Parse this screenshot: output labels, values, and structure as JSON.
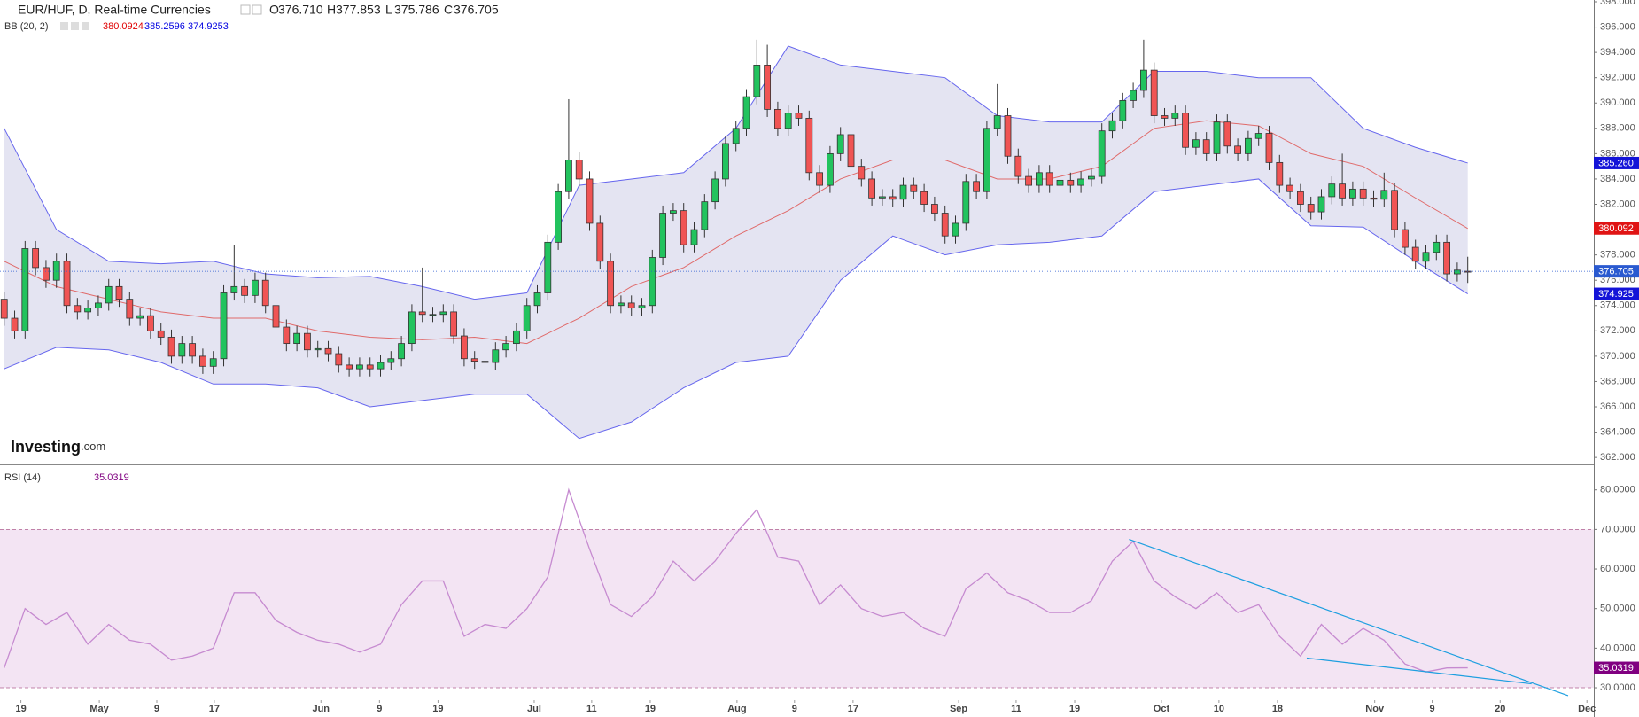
{
  "chart_data": [
    {
      "type": "candlestick",
      "title": "EUR/HUF, D, Real-time Currencies",
      "ohlc_legend": [
        {
          "key": "O",
          "label": "376.710"
        },
        {
          "key": "H",
          "label": "377.853"
        },
        {
          "key": "L",
          "label": "375.786"
        },
        {
          "key": "C",
          "label": "376.705"
        }
      ],
      "indicator": "BB (20, 2)",
      "indicator_values": [
        {
          "label": "380.0924",
          "color": "#e00000"
        },
        {
          "label": "385.2596",
          "color": "#0000e0"
        },
        {
          "label": "374.9253",
          "color": "#0000e0"
        }
      ],
      "logo": [
        "Investing",
        ".com"
      ],
      "up_color": "#22c35e",
      "down_color": "#f05454",
      "xlim": [
        -0.4,
        152.06
      ],
      "ylim": [
        361.52,
        398.14
      ],
      "yticks": [
        {
          "value": 362,
          "label": "362.000"
        },
        {
          "value": 364,
          "label": "364.000"
        },
        {
          "value": 366,
          "label": "366.000"
        },
        {
          "value": 368,
          "label": "368.000"
        },
        {
          "value": 370,
          "label": "370.000"
        },
        {
          "value": 372,
          "label": "372.000"
        },
        {
          "value": 374,
          "label": "374.000"
        },
        {
          "value": 376,
          "label": "376.000"
        },
        {
          "value": 378,
          "label": "378.000"
        },
        {
          "value": 380,
          "label": "380.000"
        },
        {
          "value": 382,
          "label": "382.000"
        },
        {
          "value": 384,
          "label": "384.000"
        },
        {
          "value": 386,
          "label": "386.000"
        },
        {
          "value": 388,
          "label": "388.000"
        },
        {
          "value": 390,
          "label": "390.000"
        },
        {
          "value": 392,
          "label": "392.000"
        },
        {
          "value": 394,
          "label": "394.000"
        },
        {
          "value": 396,
          "label": "396.000"
        },
        {
          "value": 398,
          "label": "398.000"
        }
      ],
      "open": [
        374.5,
        373,
        372,
        378.5,
        377,
        376,
        377.5,
        374,
        373.5,
        373.8,
        374.2,
        375.5,
        374.5,
        373,
        373.2,
        372,
        371.5,
        370,
        371,
        370,
        369.2,
        369.8,
        375,
        375.5,
        374.8,
        376,
        374,
        372.3,
        371,
        371.8,
        370.5,
        370.6,
        370.2,
        369.3,
        369,
        369.3,
        369,
        369.5,
        369.8,
        371,
        373.5,
        373.3,
        373.3,
        373.5,
        371.6,
        369.8,
        369.6,
        369.5,
        370.5,
        371,
        372,
        374,
        375,
        379,
        383,
        385.5,
        384,
        380.5,
        377.5,
        374,
        374.2,
        373.8,
        374,
        377.8,
        381.3,
        381.5,
        378.8,
        380,
        382.2,
        384,
        386.8,
        388,
        390.5,
        393,
        389.5,
        388,
        389.2,
        388.8,
        384.5,
        383.5,
        386,
        387.5,
        385,
        384,
        382.5,
        382.6,
        382.4,
        383.5,
        383,
        382,
        381.3,
        379.5,
        380.5,
        383.8,
        383,
        388,
        389,
        385.8,
        384.2,
        383.5,
        384.5,
        383.5,
        383.9,
        383.5,
        384,
        384.2,
        387.8,
        388.6,
        390.2,
        391,
        392.6,
        389,
        388.8,
        389.2,
        386.5,
        387.1,
        386,
        388.5,
        386.6,
        386,
        387.2,
        387.6,
        385.3,
        383.5,
        383,
        382,
        381.4,
        382.6,
        383.6,
        382.5,
        383.2,
        382.5,
        382.4,
        383.1,
        380,
        378.6,
        377.5,
        378.2,
        379,
        376.5,
        376.71
      ],
      "high": [
        375.1,
        373.6,
        379.1,
        379.1,
        377.6,
        378.1,
        378.1,
        374.6,
        374.4,
        374.8,
        376.1,
        376.1,
        375.1,
        373.8,
        373.8,
        372.6,
        372.1,
        371.6,
        371.6,
        370.6,
        370.4,
        375.6,
        378.8,
        376.1,
        376.6,
        376.6,
        374.6,
        372.9,
        372.4,
        372.4,
        371.2,
        371.2,
        370.8,
        369.9,
        369.9,
        369.9,
        370.1,
        370.4,
        371.6,
        374.1,
        377,
        373.9,
        374.1,
        374.1,
        372.2,
        370.4,
        370.2,
        371.1,
        371.6,
        372.6,
        374.6,
        375.6,
        379.6,
        383.6,
        390.3,
        386.1,
        384.6,
        381.1,
        378.1,
        374.8,
        374.8,
        374.6,
        378.4,
        381.9,
        382.1,
        382.1,
        380.6,
        382.8,
        384.6,
        387.4,
        388.6,
        391.1,
        395,
        394.6,
        390.1,
        389.8,
        389.8,
        389.4,
        385.1,
        386.6,
        388.1,
        388.1,
        385.6,
        384.6,
        383.2,
        383.2,
        384.1,
        384.1,
        383.6,
        382.6,
        381.9,
        381.1,
        384.4,
        384.4,
        388.6,
        391.5,
        389.6,
        386.4,
        384.8,
        385.1,
        385.1,
        384.5,
        384.5,
        384.6,
        384.8,
        388.4,
        389.2,
        390.8,
        391.6,
        395,
        393.2,
        389.6,
        389.8,
        389.8,
        387.7,
        387.7,
        389.1,
        389.1,
        387.2,
        387.8,
        388.2,
        388.2,
        385.9,
        384.1,
        383.6,
        382.6,
        383.2,
        384.2,
        386,
        383.8,
        383.8,
        383.1,
        384.5,
        383.7,
        380.6,
        379.2,
        378.8,
        379.6,
        379.6,
        377.4,
        377.853
      ],
      "low": [
        372.4,
        371.4,
        371.4,
        376.4,
        375.4,
        375.4,
        373.4,
        372.9,
        372.9,
        373.2,
        373.6,
        373.9,
        372.4,
        372.4,
        371.4,
        370.9,
        369.4,
        369.4,
        369.4,
        368.6,
        368.6,
        369.2,
        374.4,
        374.2,
        374.2,
        373.4,
        371.7,
        370.4,
        370.4,
        369.9,
        369.9,
        369.6,
        368.7,
        368.4,
        368.4,
        368.4,
        368.4,
        368.9,
        369.2,
        370.4,
        372.7,
        372.7,
        372.7,
        371,
        369.2,
        369,
        368.9,
        368.9,
        369.9,
        370.4,
        371.4,
        373.4,
        374.4,
        378.4,
        382.4,
        383.4,
        379.9,
        376.9,
        373.4,
        373.4,
        373.2,
        373.2,
        373.4,
        377.2,
        380.7,
        378.2,
        378.2,
        379.4,
        381.6,
        383.4,
        386.2,
        387.4,
        389.9,
        388.9,
        387.4,
        387.4,
        388.2,
        383.9,
        382.9,
        382.9,
        385.4,
        384.4,
        383.4,
        381.9,
        381.9,
        381.8,
        381.8,
        382.4,
        381.4,
        380.7,
        378.9,
        378.9,
        379.9,
        382.4,
        382.4,
        387.4,
        385.2,
        383.6,
        382.9,
        382.9,
        382.9,
        382.9,
        382.9,
        382.9,
        383.4,
        383.6,
        387.2,
        388,
        389.6,
        390.4,
        388.4,
        388.2,
        388.2,
        385.9,
        385.9,
        385.4,
        385.4,
        386,
        385.4,
        385.4,
        386.6,
        384.7,
        382.9,
        382.4,
        381.4,
        380.8,
        380.8,
        382,
        381.9,
        381.9,
        381.9,
        381.8,
        381.8,
        379.4,
        378,
        376.9,
        376.9,
        377.6,
        375.9,
        375.9,
        375.786
      ],
      "close": [
        373,
        372,
        378.5,
        377,
        376,
        377.5,
        374,
        373.5,
        373.8,
        374.2,
        375.5,
        374.5,
        373,
        373.2,
        372,
        371.5,
        370,
        371,
        370,
        369.2,
        369.8,
        375,
        375.5,
        374.8,
        376,
        374,
        372.3,
        371,
        371.8,
        370.5,
        370.6,
        370.2,
        369.3,
        369,
        369.3,
        369,
        369.5,
        369.8,
        371,
        373.5,
        373.3,
        373.3,
        373.5,
        371.6,
        369.8,
        369.6,
        369.5,
        370.5,
        371,
        372,
        374,
        375,
        379,
        383,
        385.5,
        384,
        380.5,
        377.5,
        374,
        374.2,
        373.8,
        374,
        377.8,
        381.3,
        381.5,
        378.8,
        380,
        382.2,
        384,
        386.8,
        388,
        390.5,
        393,
        389.5,
        388,
        389.2,
        388.8,
        384.5,
        383.5,
        386,
        387.5,
        385,
        384,
        382.5,
        382.6,
        382.4,
        383.5,
        383,
        382,
        381.3,
        379.5,
        380.5,
        383.8,
        383,
        388,
        389,
        385.8,
        384.2,
        383.5,
        384.5,
        383.5,
        383.9,
        383.5,
        384,
        384.2,
        387.8,
        388.6,
        390.2,
        391,
        392.6,
        389,
        388.8,
        389.2,
        386.5,
        387.1,
        386,
        388.5,
        386.6,
        386,
        387.2,
        387.6,
        385.3,
        383.5,
        383,
        382,
        381.4,
        382.6,
        383.6,
        382.5,
        383.2,
        382.5,
        382.4,
        383.1,
        380,
        378.6,
        377.5,
        378.2,
        379,
        376.5,
        376.8,
        376.705
      ],
      "bb_x": [
        0,
        5,
        10,
        15,
        20,
        25,
        30,
        35,
        40,
        45,
        50,
        55,
        60,
        65,
        70,
        75,
        80,
        85,
        90,
        95,
        100,
        105,
        110,
        115,
        120,
        125,
        130,
        135,
        140
      ],
      "bb_upper": [
        388,
        380,
        377.5,
        377.3,
        377.5,
        376.5,
        376.2,
        376.3,
        375.5,
        374.5,
        375,
        383.5,
        384,
        384.5,
        388,
        394.5,
        393,
        392.5,
        392,
        389,
        388.5,
        388.5,
        392.5,
        392.5,
        392,
        392,
        388,
        386.5,
        385.26
      ],
      "bb_middle": [
        377.5,
        375.5,
        374.5,
        373.5,
        373,
        373,
        372,
        371.5,
        371.3,
        371.5,
        371,
        373,
        375.5,
        377,
        379.5,
        381.5,
        384,
        385.5,
        385.5,
        384,
        384,
        385,
        388,
        388.6,
        388.2,
        386,
        385,
        382.5,
        380.092
      ],
      "bb_lower": [
        369,
        370.7,
        370.5,
        369.5,
        367.8,
        367.8,
        367.5,
        366,
        366.5,
        367,
        367,
        363.5,
        364.8,
        367.5,
        369.5,
        370,
        376,
        379.5,
        378,
        378.8,
        379,
        379.5,
        383,
        383.5,
        384,
        380.3,
        380.2,
        377.5,
        374.925
      ],
      "band_color": "#6666ee",
      "middle_color": "#e06a6a",
      "fill_color": "#e4e4f2",
      "price_labels": [
        {
          "value": 385.26,
          "label": "385.260",
          "color": "#1414d8"
        },
        {
          "value": 380.092,
          "label": "380.092",
          "color": "#e01414"
        },
        {
          "value": 376.705,
          "label": "376.705",
          "color": "#2a5ad0",
          "dotted": true
        },
        {
          "value": 374.925,
          "label": "374.925",
          "color": "#1414d8"
        }
      ]
    },
    {
      "type": "line",
      "title": "RSI (14)",
      "value_label": {
        "value": 35.0319,
        "label": "35.0319"
      },
      "color": "#c68ad0",
      "label_color": "#800080",
      "xlim": [
        -0.4,
        152.06
      ],
      "ylim": [
        26.87,
        85.98
      ],
      "yticks": [
        {
          "value": 30,
          "label": "30.0000"
        },
        {
          "value": 40,
          "label": "40.0000"
        },
        {
          "value": 50,
          "label": "50.0000"
        },
        {
          "value": 60,
          "label": "60.0000"
        },
        {
          "value": 70,
          "label": "70.0000"
        },
        {
          "value": 80,
          "label": "80.0000"
        }
      ],
      "levels": [
        70,
        30
      ],
      "level_fill": "#f3e4f3",
      "x": [
        0,
        2,
        4,
        6,
        8,
        10,
        12,
        14,
        16,
        18,
        20,
        22,
        24,
        26,
        28,
        30,
        32,
        34,
        36,
        38,
        40,
        42,
        44,
        46,
        48,
        50,
        52,
        54,
        56,
        58,
        60,
        62,
        64,
        66,
        68,
        70,
        72,
        74,
        76,
        78,
        80,
        82,
        84,
        86,
        88,
        90,
        92,
        94,
        96,
        98,
        100,
        102,
        104,
        106,
        108,
        110,
        112,
        114,
        116,
        118,
        120,
        122,
        124,
        126,
        128,
        130,
        132,
        134,
        136,
        138,
        140
      ],
      "values": [
        35,
        50,
        46,
        49,
        41,
        46,
        42,
        41,
        37,
        38,
        40,
        54,
        54,
        47,
        44,
        42,
        41,
        39,
        41,
        51,
        57,
        57,
        43,
        46,
        45,
        50,
        58,
        80,
        65,
        51,
        48,
        53,
        62,
        57,
        62,
        69,
        75,
        63,
        62,
        51,
        56,
        50,
        48,
        49,
        45,
        43,
        55,
        59,
        54,
        52,
        49,
        49,
        52,
        62,
        67,
        57,
        53,
        50,
        54,
        49,
        51,
        43,
        38,
        46,
        41,
        45,
        42,
        36,
        34,
        35,
        35.0319
      ],
      "trendlines": [
        {
          "x": [
            107.6,
            149.6
          ],
          "y": [
            67.5,
            28
          ]
        },
        {
          "x": [
            124.6,
            146.1
          ],
          "y": [
            37.5,
            31
          ]
        }
      ],
      "trend_color": "#1e9fe0",
      "xticks": [
        {
          "value": 1.6,
          "label": "19"
        },
        {
          "value": 9.1,
          "label": "May"
        },
        {
          "value": 14.6,
          "label": "9"
        },
        {
          "value": 20.1,
          "label": "17"
        },
        {
          "value": 30.3,
          "label": "Jun"
        },
        {
          "value": 35.9,
          "label": "9"
        },
        {
          "value": 41.5,
          "label": "19"
        },
        {
          "value": 50.7,
          "label": "Jul"
        },
        {
          "value": 56.2,
          "label": "11"
        },
        {
          "value": 61.8,
          "label": "19"
        },
        {
          "value": 70.1,
          "label": "Aug"
        },
        {
          "value": 75.6,
          "label": "9"
        },
        {
          "value": 81.2,
          "label": "17"
        },
        {
          "value": 91.3,
          "label": "Sep"
        },
        {
          "value": 96.8,
          "label": "11"
        },
        {
          "value": 102.4,
          "label": "19"
        },
        {
          "value": 110.7,
          "label": "Oct"
        },
        {
          "value": 116.2,
          "label": "10"
        },
        {
          "value": 121.8,
          "label": "18"
        },
        {
          "value": 131.1,
          "label": "Nov"
        },
        {
          "value": 136.6,
          "label": "9"
        },
        {
          "value": 143.1,
          "label": "20"
        },
        {
          "value": 151.4,
          "label": "Dec"
        }
      ]
    }
  ]
}
